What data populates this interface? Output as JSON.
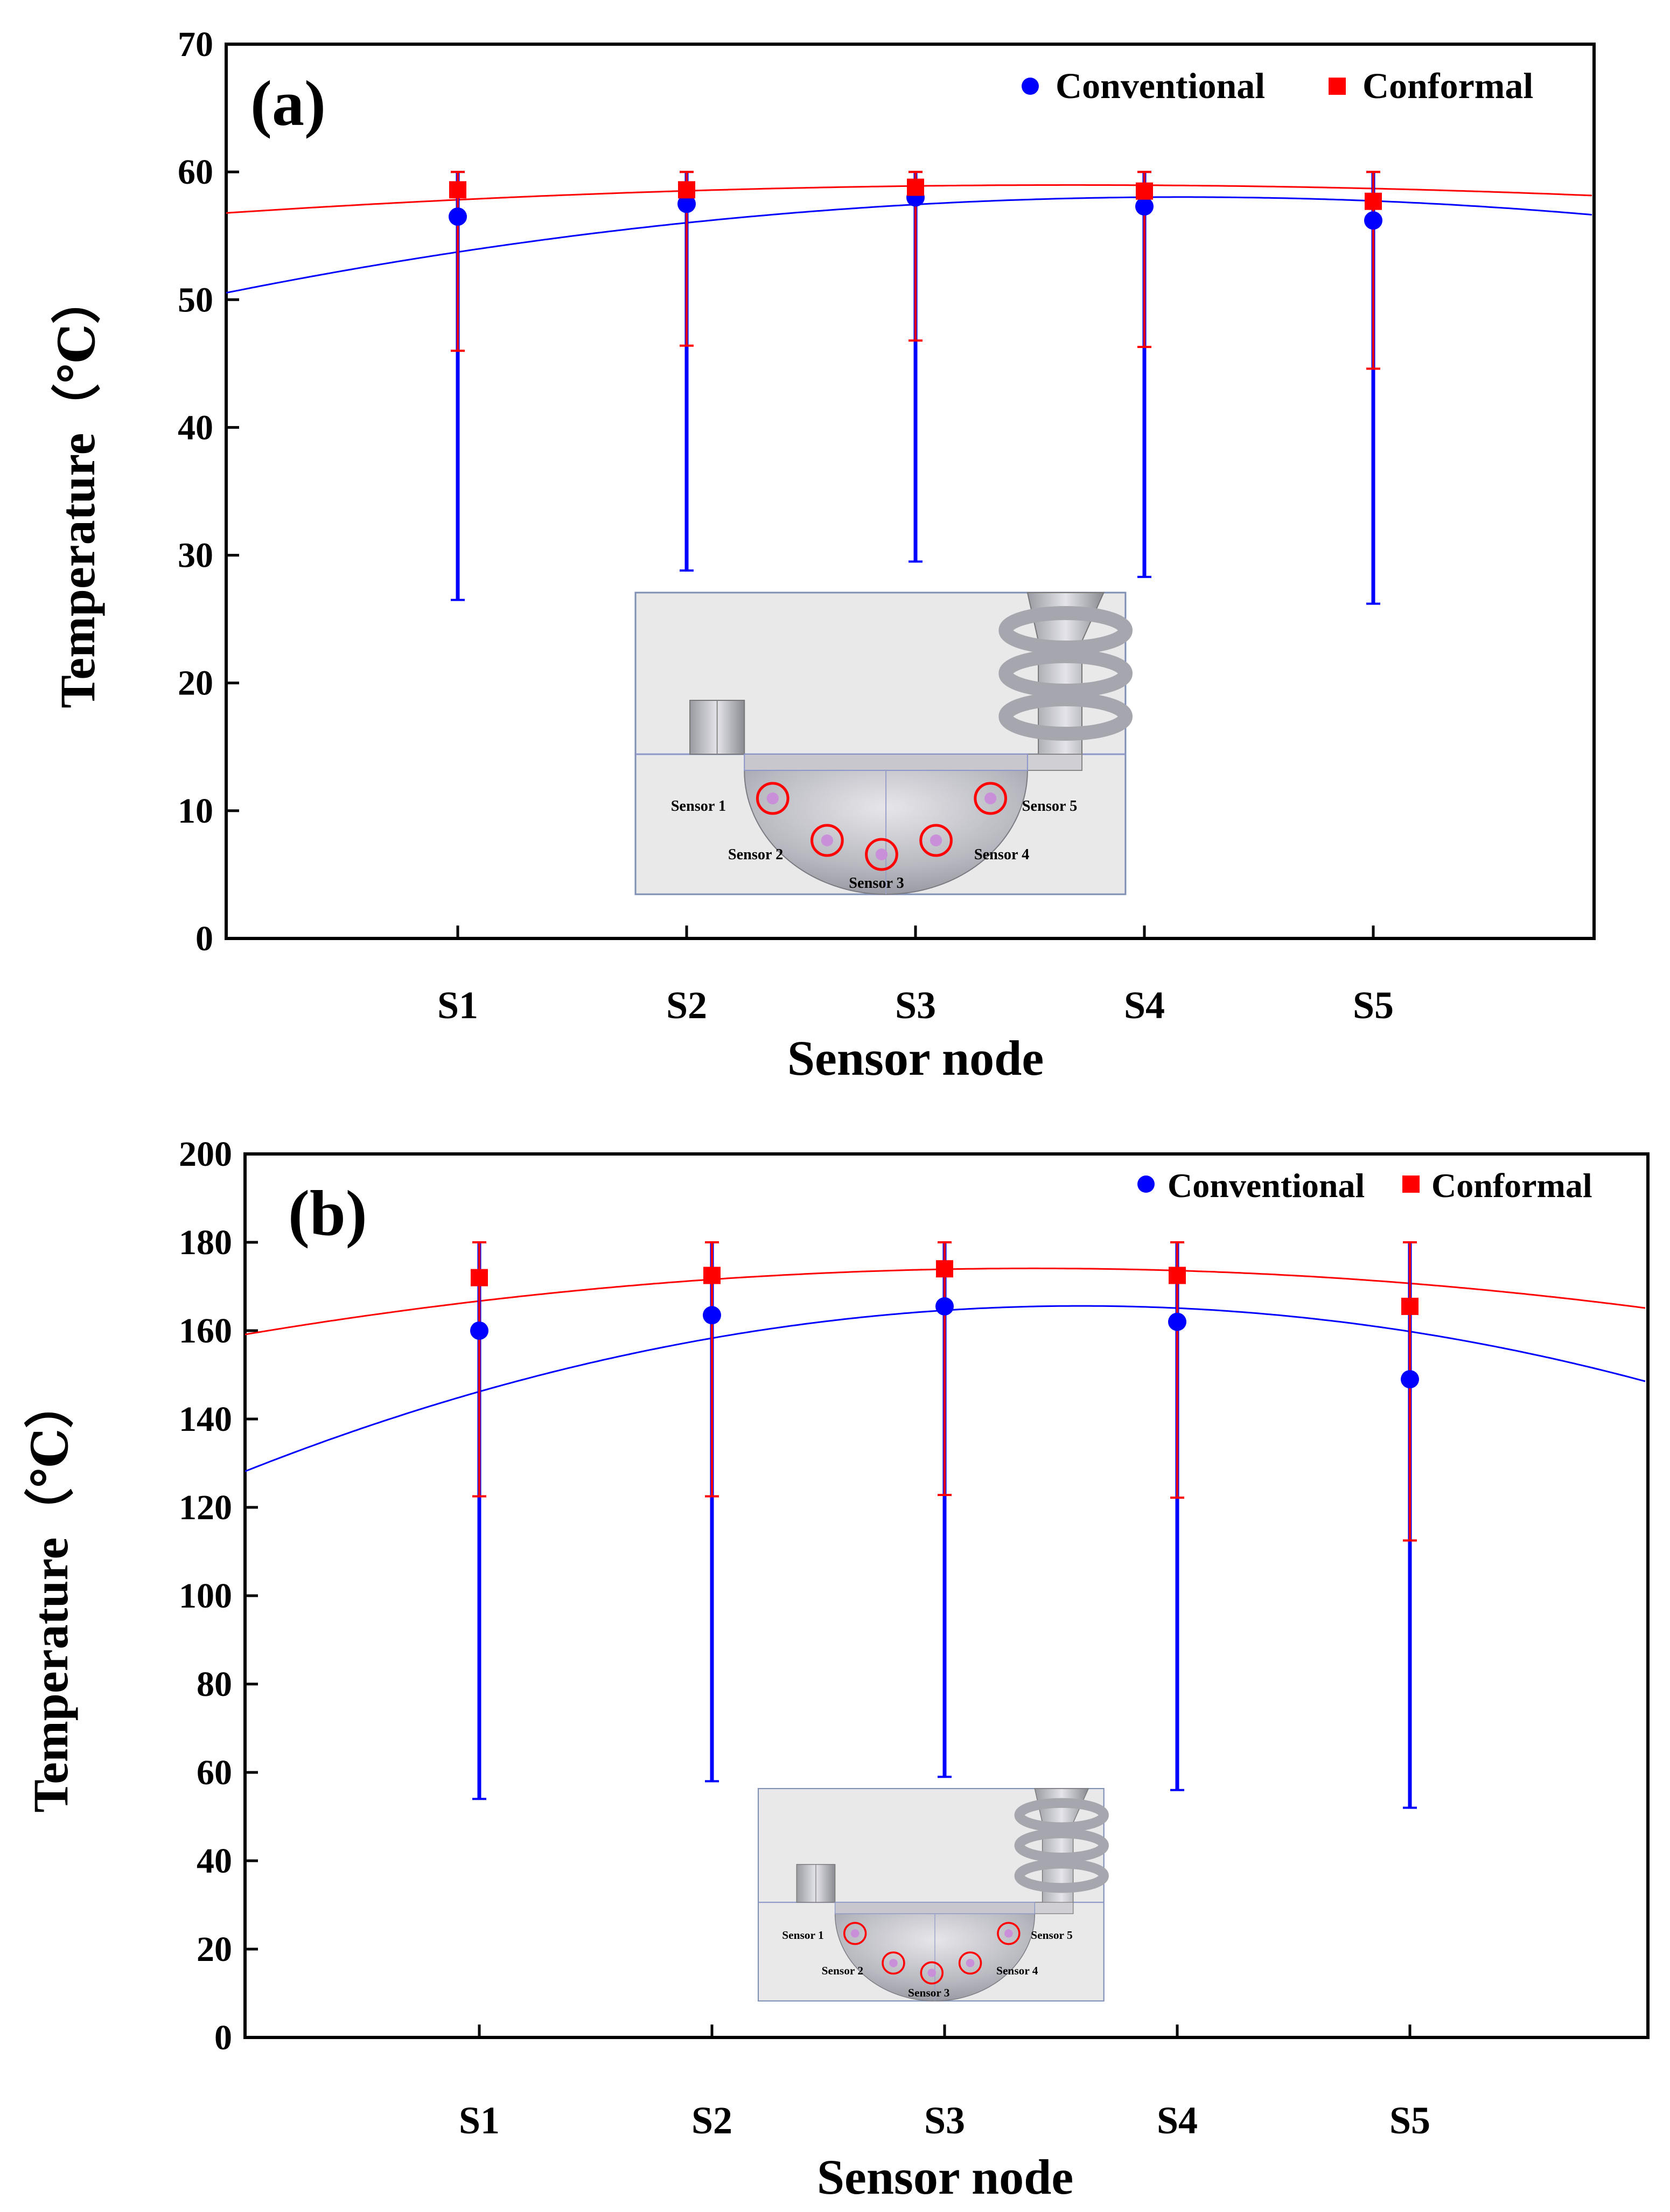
{
  "chart_data": [
    {
      "type": "scatter",
      "panel_label": "(a)",
      "xlabel": "Sensor node",
      "ylabel": "Temperature（℃）",
      "categories": [
        "S1",
        "S2",
        "S3",
        "S4",
        "S5"
      ],
      "ylim": [
        0,
        70
      ],
      "yticks": [
        0,
        10,
        20,
        30,
        40,
        50,
        60,
        70
      ],
      "legend_position": "top-right",
      "series": [
        {
          "name": "Conventional",
          "color": "#0000ff",
          "marker": "circle",
          "values": [
            56.5,
            57.5,
            58.0,
            57.3,
            56.2
          ],
          "err_low": [
            26.5,
            28.8,
            29.5,
            28.3,
            26.2
          ],
          "err_high": [
            60,
            60,
            60,
            60,
            60
          ],
          "fit": [
            -0.43,
            2.72,
            53.73
          ]
        },
        {
          "name": "Conformal",
          "color": "#ff0000",
          "marker": "square",
          "values": [
            58.6,
            58.6,
            58.8,
            58.5,
            57.7
          ],
          "err_low": [
            46.0,
            46.4,
            46.8,
            46.3,
            44.6
          ],
          "err_high": [
            60,
            60,
            60,
            60,
            60
          ],
          "fit": [
            -0.16,
            0.86,
            57.82
          ]
        }
      ],
      "inset": {
        "sensor_labels": [
          "Sensor 1",
          "Sensor 2",
          "Sensor 3",
          "Sensor 4",
          "Sensor 5"
        ]
      }
    },
    {
      "type": "scatter",
      "panel_label": "(b)",
      "xlabel": "Sensor node",
      "ylabel": "Temperature（℃）",
      "categories": [
        "S1",
        "S2",
        "S3",
        "S4",
        "S5"
      ],
      "ylim": [
        0,
        200
      ],
      "yticks": [
        0,
        20,
        40,
        60,
        80,
        100,
        120,
        140,
        160,
        180,
        200
      ],
      "legend_position": "top-right",
      "series": [
        {
          "name": "Conventional",
          "color": "#0000ff",
          "marker": "circle",
          "values": [
            160,
            163.5,
            165.5,
            162,
            149
          ],
          "err_low": [
            54,
            58,
            59,
            56,
            52
          ],
          "err_high": [
            180,
            180,
            180,
            180,
            180
          ],
          "fit": [
            -2.9,
            15.0,
            146.2
          ]
        },
        {
          "name": "Conformal",
          "color": "#ff0000",
          "marker": "square",
          "values": [
            172,
            172.5,
            174,
            172.5,
            165.5
          ],
          "err_low": [
            122.5,
            122.5,
            122.8,
            122.2,
            112.5
          ],
          "err_high": [
            180,
            180,
            180,
            180,
            180
          ],
          "fit": [
            -1.3,
            6.2,
            166.7
          ]
        }
      ],
      "inset": {
        "sensor_labels": [
          "Sensor 1",
          "Sensor 2",
          "Sensor 3",
          "Sensor 4",
          "Sensor 5"
        ]
      }
    }
  ]
}
